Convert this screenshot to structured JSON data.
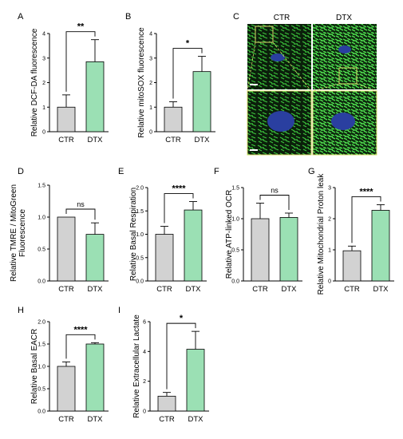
{
  "colors": {
    "ctr": "#d2d2d2",
    "dtx": "#9be0b4",
    "micro_bg": "#0b1f0b",
    "micro_green": "#3cc43c",
    "nucleus": "#2a3fa0",
    "zoom_box": "#d8d86a"
  },
  "panel_c": {
    "label": "C",
    "col_labels": [
      "CTR",
      "DTX"
    ],
    "scale_bar_icon": "scale-bar-icon"
  },
  "chart_data": [
    {
      "id": "A",
      "type": "bar",
      "panel_label": "A",
      "ylabel": "Relative DCF-DA fluorescence",
      "categories": [
        "CTR",
        "DTX"
      ],
      "values": [
        1.0,
        2.85
      ],
      "errors": [
        0.5,
        0.9
      ],
      "ylim": [
        0,
        4
      ],
      "yticks": [
        "0",
        "1",
        "2",
        "3",
        "4"
      ],
      "significance": "**"
    },
    {
      "id": "B",
      "type": "bar",
      "panel_label": "B",
      "ylabel": "Relative mitoSOX fluorescence",
      "categories": [
        "CTR",
        "DTX"
      ],
      "values": [
        1.0,
        2.45
      ],
      "errors": [
        0.22,
        0.62
      ],
      "ylim": [
        0,
        4
      ],
      "yticks": [
        "0",
        "1",
        "2",
        "3",
        "4"
      ],
      "significance": "*"
    },
    {
      "id": "D",
      "type": "bar",
      "panel_label": "D",
      "ylabel": "Relative TMRE / MitoGreen Fluorescence",
      "categories": [
        "CTR",
        "DTX"
      ],
      "values": [
        1.0,
        0.73
      ],
      "errors": [
        0.0,
        0.18
      ],
      "ylim": [
        0,
        1.5
      ],
      "yticks": [
        "0.0",
        "0.5",
        "1.0",
        "1.5"
      ],
      "significance": "ns"
    },
    {
      "id": "E",
      "type": "bar",
      "panel_label": "E",
      "ylabel": "Relative Basal Respiration",
      "categories": [
        "CTR",
        "DTX"
      ],
      "values": [
        1.0,
        1.52
      ],
      "errors": [
        0.17,
        0.18
      ],
      "ylim": [
        0,
        2.0
      ],
      "yticks": [
        "0.0",
        "0.5",
        "1.0",
        "1.5",
        "2.0"
      ],
      "significance": "****"
    },
    {
      "id": "F",
      "type": "bar",
      "panel_label": "F",
      "ylabel": "Relative ATP-linked OCR",
      "categories": [
        "CTR",
        "DTX"
      ],
      "values": [
        1.0,
        1.02
      ],
      "errors": [
        0.25,
        0.07
      ],
      "ylim": [
        0,
        1.5
      ],
      "yticks": [
        "0.0",
        "0.5",
        "1.0",
        "1.5"
      ],
      "significance": "ns"
    },
    {
      "id": "G",
      "type": "bar",
      "panel_label": "G",
      "ylabel": "Relative Mitochondrial Proton leak",
      "categories": [
        "CTR",
        "DTX"
      ],
      "values": [
        0.97,
        2.27
      ],
      "errors": [
        0.15,
        0.18
      ],
      "ylim": [
        0,
        3
      ],
      "yticks": [
        "0",
        "1",
        "2",
        "3"
      ],
      "significance": "****"
    },
    {
      "id": "H",
      "type": "bar",
      "panel_label": "H",
      "ylabel": "Relative Basal EACR",
      "categories": [
        "CTR",
        "DTX"
      ],
      "values": [
        1.0,
        1.5
      ],
      "errors": [
        0.1,
        0.03
      ],
      "ylim": [
        0,
        2.0
      ],
      "yticks": [
        "0.0",
        "0.5",
        "1.0",
        "1.5",
        "2.0"
      ],
      "significance": "****"
    },
    {
      "id": "I",
      "type": "bar",
      "panel_label": "I",
      "ylabel": "Relative Extracellular Lactate",
      "categories": [
        "CTR",
        "DTX"
      ],
      "values": [
        1.0,
        4.15
      ],
      "errors": [
        0.25,
        1.2
      ],
      "ylim": [
        0,
        6
      ],
      "yticks": [
        "0",
        "2",
        "4",
        "6"
      ],
      "significance": "*"
    }
  ]
}
